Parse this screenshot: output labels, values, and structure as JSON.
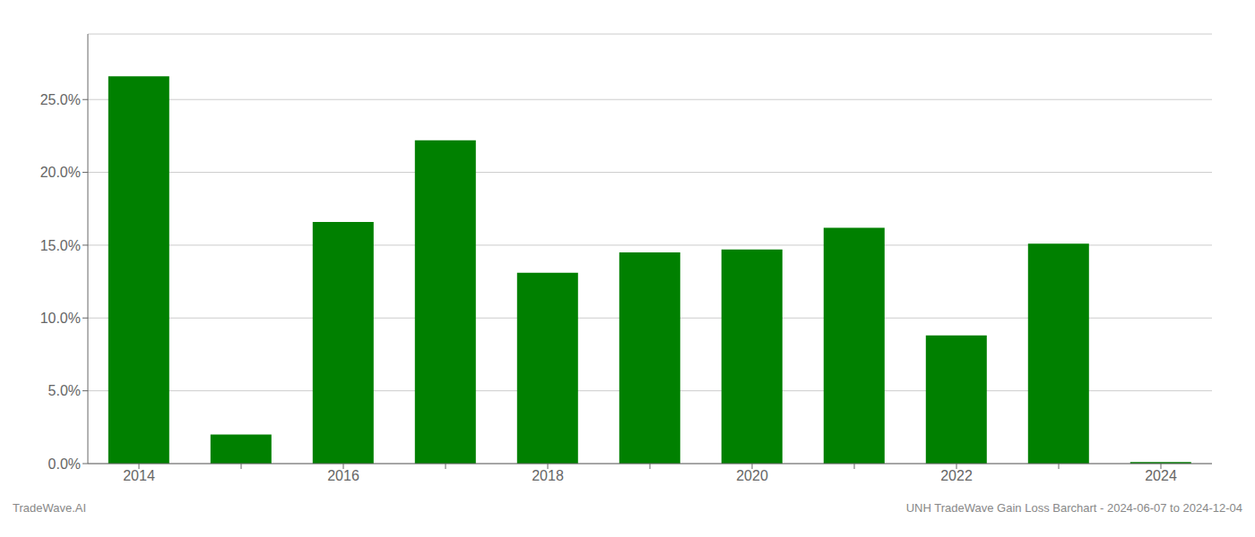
{
  "chart_data": {
    "type": "bar",
    "categories": [
      "2014",
      null,
      "2016",
      null,
      "2018",
      null,
      "2020",
      null,
      "2022",
      null,
      "2024"
    ],
    "values": [
      0.266,
      0.02,
      0.166,
      0.222,
      0.131,
      0.145,
      0.147,
      0.162,
      0.088,
      0.151,
      0.001
    ],
    "color": "#008000",
    "ylim": [
      0.0,
      0.295
    ],
    "yticks": [
      {
        "value": 0.0,
        "label": "0.0%"
      },
      {
        "value": 0.05,
        "label": "5.0%"
      },
      {
        "value": 0.1,
        "label": "10.0%"
      },
      {
        "value": 0.15,
        "label": "15.0%"
      },
      {
        "value": 0.2,
        "label": "20.0%"
      },
      {
        "value": 0.25,
        "label": "25.0%"
      }
    ],
    "grid": "y",
    "annotations": [
      "TradeWave.AI",
      "UNH TradeWave Gain Loss Barchart - 2024-06-07 to 2024-12-04"
    ]
  }
}
